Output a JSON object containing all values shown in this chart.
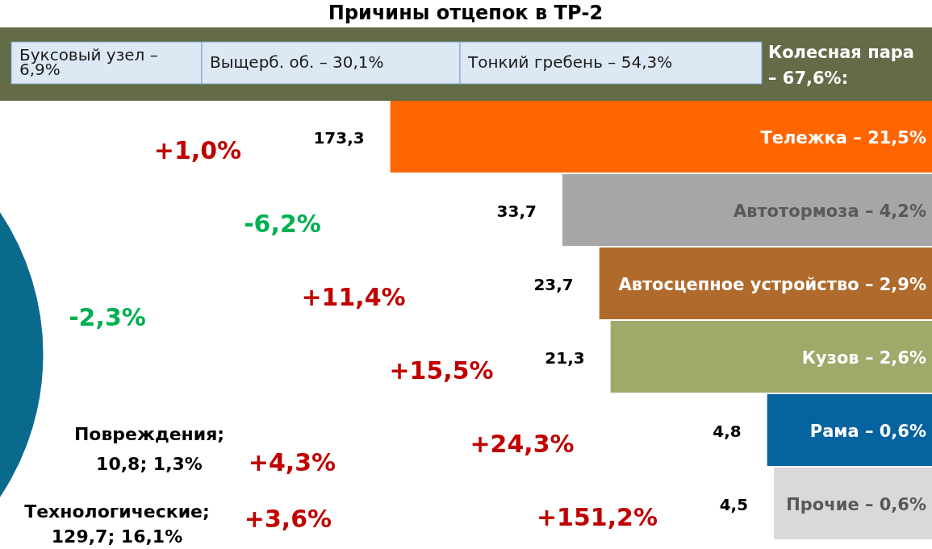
{
  "chart_data": {
    "type": "other",
    "title": "Причины отцепок в ТР-2",
    "categories": [
      "Тележка – 21,5%",
      "Автотормоза – 4,2%",
      "Автосцепное устройство – 2,9%",
      "Кузов – 2,6%",
      "Рама – 0,6%",
      "Прочие – 0,6%"
    ],
    "values": [
      173.3,
      33.7,
      23.7,
      21.3,
      4.8,
      4.5
    ],
    "value_labels": [
      "173,3",
      "33,7",
      "23,7",
      "21,3",
      "4,8",
      "4,5"
    ],
    "colors": [
      "#ff6600",
      "#a6a6a6",
      "#b06a2c",
      "#a0a86a",
      "#0563a0",
      "#d9d9d9"
    ],
    "annotations": [
      "Буксовый узел – 6,9%",
      "Выщерб. об. – 30,1%",
      "Тонкий гребень – 54,3%",
      "Колесная пара – 67,6%:",
      "+1,0%",
      "-6,2%",
      "+11,4%",
      "+15,5%",
      "+24,3%",
      "+151,2%",
      "-2,3%",
      "Повреждения; 10,8; 1,3%",
      "+4,3%",
      "Технологические; 129,7; 16,1%",
      "+3,6%"
    ]
  }
}
